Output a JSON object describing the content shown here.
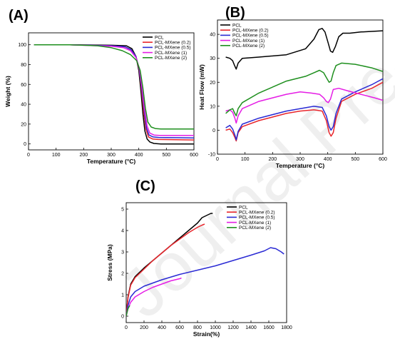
{
  "colors": {
    "PCL": "#000000",
    "PCL-MXene (0.2)": "#e8262c",
    "PCL-MXene (0.5)": "#2a2ad4",
    "PCL-MXene (1)": "#e51de5",
    "PCL-MXene (2)": "#1e8f1e"
  },
  "watermark": "Journal Pre-proof",
  "chart_data": [
    {
      "id": "A",
      "panel_label": "(A)",
      "type": "line",
      "xlabel": "Temperature (°C)",
      "ylabel": "Weight (%)",
      "xlim": [
        0,
        600
      ],
      "ylim": [
        -6,
        112
      ],
      "xticks": [
        0,
        100,
        200,
        300,
        400,
        500,
        600
      ],
      "yticks": [
        0,
        20,
        40,
        60,
        80,
        100
      ],
      "legend_position": "top-right",
      "series": [
        {
          "name": "PCL",
          "x": [
            20,
            150,
            300,
            355,
            375,
            390,
            400,
            408,
            415,
            422,
            430,
            440,
            455,
            480,
            600
          ],
          "y": [
            100,
            100,
            99.5,
            99,
            96,
            88,
            74,
            52,
            30,
            13,
            5,
            2,
            0.5,
            0,
            0
          ]
        },
        {
          "name": "PCL-MXene (0.2)",
          "x": [
            20,
            150,
            300,
            350,
            372,
            390,
            402,
            410,
            418,
            426,
            435,
            450,
            470,
            600
          ],
          "y": [
            100,
            100,
            99,
            98,
            95,
            88,
            74,
            54,
            32,
            15,
            7,
            5,
            4.5,
            4
          ]
        },
        {
          "name": "PCL-MXene (0.5)",
          "x": [
            20,
            150,
            300,
            350,
            372,
            390,
            402,
            411,
            420,
            428,
            437,
            452,
            472,
            600
          ],
          "y": [
            100,
            100,
            99,
            98,
            95,
            88,
            75,
            55,
            33,
            16,
            9,
            7,
            6.5,
            6
          ]
        },
        {
          "name": "PCL-MXene (1)",
          "x": [
            20,
            150,
            300,
            345,
            370,
            390,
            403,
            412,
            421,
            430,
            440,
            455,
            475,
            600
          ],
          "y": [
            100,
            100,
            98.5,
            97,
            94,
            87,
            75,
            56,
            35,
            18,
            11,
            9,
            8.5,
            8.5
          ]
        },
        {
          "name": "PCL-MXene (2)",
          "x": [
            20,
            150,
            250,
            300,
            340,
            370,
            392,
            405,
            415,
            424,
            433,
            445,
            460,
            480,
            600
          ],
          "y": [
            100,
            100,
            99,
            97,
            94,
            90,
            84,
            74,
            56,
            36,
            22,
            17,
            15.5,
            15,
            15
          ]
        }
      ]
    },
    {
      "id": "B",
      "panel_label": "(B)",
      "type": "line",
      "xlabel": "Temperature (°C)",
      "ylabel": "Heat Flow (mW)",
      "xlim": [
        0,
        600
      ],
      "ylim": [
        -10,
        46
      ],
      "xticks": [
        0,
        100,
        200,
        300,
        400,
        500,
        600
      ],
      "yticks": [
        -10,
        0,
        10,
        20,
        30,
        40
      ],
      "legend_position": "top-left",
      "series": [
        {
          "name": "PCL",
          "x": [
            30,
            45,
            55,
            62,
            68,
            75,
            90,
            150,
            250,
            320,
            350,
            368,
            380,
            390,
            400,
            410,
            418,
            428,
            440,
            455,
            480,
            520,
            600
          ],
          "y": [
            30.5,
            30,
            29,
            27,
            25.5,
            28,
            30,
            30.5,
            31.5,
            34,
            38,
            42,
            42.5,
            41,
            37,
            33,
            32.5,
            35,
            39,
            40.5,
            40.5,
            41,
            41.5
          ]
        },
        {
          "name": "PCL-MXene (0.2)",
          "x": [
            30,
            45,
            55,
            63,
            68,
            75,
            90,
            150,
            250,
            300,
            350,
            380,
            395,
            405,
            412,
            420,
            430,
            450,
            500,
            560,
            600
          ],
          "y": [
            0,
            0.5,
            -1,
            -3,
            -4.5,
            -1,
            1.5,
            4,
            7,
            8,
            8.5,
            8,
            4,
            -1,
            -2.5,
            -1,
            5,
            12,
            15,
            17.5,
            20
          ]
        },
        {
          "name": "PCL-MXene (0.5)",
          "x": [
            30,
            45,
            55,
            63,
            68,
            75,
            90,
            150,
            250,
            300,
            350,
            380,
            395,
            405,
            412,
            420,
            430,
            450,
            500,
            560,
            600
          ],
          "y": [
            1,
            2,
            0.5,
            -2,
            -4,
            -0.5,
            2.5,
            5,
            8,
            9,
            10,
            9.5,
            6,
            1.5,
            0,
            1.5,
            7,
            13,
            16,
            19,
            21.5
          ]
        },
        {
          "name": "PCL-MXene (1)",
          "x": [
            30,
            45,
            55,
            63,
            68,
            75,
            90,
            150,
            250,
            300,
            340,
            370,
            385,
            395,
            402,
            410,
            420,
            440,
            470,
            520,
            570,
            600
          ],
          "y": [
            8,
            8.5,
            7.5,
            5,
            3,
            6,
            9,
            12,
            15,
            16,
            15.5,
            15,
            13.5,
            12,
            11.5,
            13,
            17,
            17.5,
            16.5,
            15,
            13.5,
            12.5
          ]
        },
        {
          "name": "PCL-MXene (2)",
          "x": [
            30,
            45,
            55,
            63,
            68,
            75,
            90,
            150,
            250,
            320,
            350,
            370,
            385,
            395,
            405,
            412,
            420,
            430,
            450,
            500,
            560,
            600
          ],
          "y": [
            7,
            8.5,
            9,
            7,
            6,
            9,
            11.5,
            15.5,
            20.5,
            22.5,
            24,
            25,
            24,
            22,
            20,
            20.5,
            24,
            27,
            28,
            27.5,
            26,
            24.5
          ]
        }
      ]
    },
    {
      "id": "C",
      "panel_label": "(C)",
      "type": "line",
      "xlabel": "Strain(%)",
      "ylabel": "Stress (MPa)",
      "xlim": [
        0,
        1800
      ],
      "ylim": [
        -0.3,
        5.3
      ],
      "xticks": [
        0,
        200,
        400,
        600,
        800,
        1000,
        1200,
        1400,
        1600,
        1800
      ],
      "yticks": [
        0,
        1,
        2,
        3,
        4,
        5
      ],
      "legend_position": "top-right",
      "series": [
        {
          "name": "PCL",
          "x": [
            0,
            20,
            50,
            100,
            150,
            200,
            300,
            400,
            500,
            600,
            700,
            800,
            850,
            900,
            950,
            970
          ],
          "y": [
            0,
            0.9,
            1.5,
            1.85,
            2.05,
            2.25,
            2.6,
            2.95,
            3.3,
            3.65,
            4.0,
            4.35,
            4.6,
            4.7,
            4.8,
            4.8
          ]
        },
        {
          "name": "PCL-MXene (0.2)",
          "x": [
            0,
            20,
            50,
            100,
            150,
            200,
            300,
            400,
            500,
            600,
            700,
            800,
            850,
            880
          ],
          "y": [
            0,
            0.85,
            1.45,
            1.8,
            2.0,
            2.2,
            2.6,
            2.95,
            3.3,
            3.6,
            3.9,
            4.15,
            4.25,
            4.3
          ]
        },
        {
          "name": "PCL-MXene (0.5)",
          "x": [
            0,
            20,
            50,
            100,
            200,
            300,
            400,
            600,
            800,
            1000,
            1200,
            1400,
            1550,
            1620,
            1680,
            1740,
            1770
          ],
          "y": [
            0,
            0.5,
            0.9,
            1.15,
            1.4,
            1.55,
            1.7,
            1.95,
            2.15,
            2.35,
            2.6,
            2.85,
            3.05,
            3.2,
            3.15,
            3.0,
            2.9
          ]
        },
        {
          "name": "PCL-MXene (1)",
          "x": [
            0,
            20,
            50,
            100,
            200,
            300,
            400,
            500,
            600,
            620
          ],
          "y": [
            0,
            0.35,
            0.65,
            0.9,
            1.15,
            1.35,
            1.5,
            1.65,
            1.75,
            1.78
          ]
        },
        {
          "name": "PCL-MXene (2)",
          "x": [
            0,
            10,
            20,
            40
          ],
          "y": [
            0,
            0.2,
            0.35,
            0.5
          ]
        }
      ]
    }
  ]
}
